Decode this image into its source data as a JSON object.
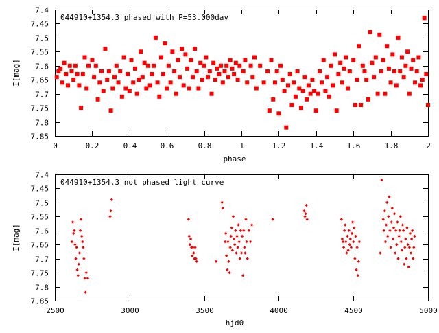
{
  "chart_data": [
    {
      "type": "scatter",
      "title": "044910+1354.3 phased with P=53.000day",
      "xlabel": "phase",
      "ylabel": "I[mag]",
      "xlim": [
        0,
        2
      ],
      "ylim": [
        7.85,
        7.4
      ],
      "y_inverted": true,
      "grid": false,
      "x_ticks": [
        "0",
        "0.2",
        "0.4",
        "0.6",
        "0.8",
        "1",
        "1.2",
        "1.4",
        "1.6",
        "1.8",
        "2"
      ],
      "y_ticks": [
        "7.4",
        "7.45",
        "7.5",
        "7.55",
        "7.6",
        "7.65",
        "7.7",
        "7.75",
        "7.8",
        "7.85"
      ],
      "marker_color": "#ff0000",
      "marker": "filled-square",
      "points": [
        [
          0.01,
          7.64
        ],
        [
          0.02,
          7.62
        ],
        [
          0.03,
          7.61
        ],
        [
          0.04,
          7.66
        ],
        [
          0.05,
          7.59
        ],
        [
          0.06,
          7.63
        ],
        [
          0.07,
          7.67
        ],
        [
          0.08,
          7.6
        ],
        [
          0.09,
          7.62
        ],
        [
          0.1,
          7.65
        ],
        [
          0.11,
          7.6
        ],
        [
          0.12,
          7.63
        ],
        [
          0.13,
          7.67
        ],
        [
          0.14,
          7.75
        ],
        [
          0.15,
          7.63
        ],
        [
          0.16,
          7.57
        ],
        [
          0.17,
          7.68
        ],
        [
          0.18,
          7.6
        ],
        [
          0.2,
          7.58
        ],
        [
          0.21,
          7.64
        ],
        [
          0.22,
          7.6
        ],
        [
          0.23,
          7.72
        ],
        [
          0.24,
          7.66
        ],
        [
          0.25,
          7.62
        ],
        [
          0.26,
          7.69
        ],
        [
          0.27,
          7.54
        ],
        [
          0.28,
          7.65
        ],
        [
          0.29,
          7.62
        ],
        [
          0.3,
          7.76
        ],
        [
          0.31,
          7.68
        ],
        [
          0.32,
          7.64
        ],
        [
          0.33,
          7.6
        ],
        [
          0.34,
          7.66
        ],
        [
          0.35,
          7.62
        ],
        [
          0.36,
          7.71
        ],
        [
          0.37,
          7.57
        ],
        [
          0.38,
          7.68
        ],
        [
          0.39,
          7.63
        ],
        [
          0.4,
          7.69
        ],
        [
          0.41,
          7.58
        ],
        [
          0.42,
          7.66
        ],
        [
          0.43,
          7.61
        ],
        [
          0.44,
          7.7
        ],
        [
          0.45,
          7.65
        ],
        [
          0.46,
          7.55
        ],
        [
          0.47,
          7.64
        ],
        [
          0.48,
          7.59
        ],
        [
          0.49,
          7.68
        ],
        [
          0.5,
          7.6
        ],
        [
          0.51,
          7.67
        ],
        [
          0.52,
          7.63
        ],
        [
          0.53,
          7.6
        ],
        [
          0.54,
          7.5
        ],
        [
          0.55,
          7.66
        ],
        [
          0.56,
          7.71
        ],
        [
          0.57,
          7.57
        ],
        [
          0.58,
          7.63
        ],
        [
          0.59,
          7.52
        ],
        [
          0.6,
          7.68
        ],
        [
          0.61,
          7.6
        ],
        [
          0.62,
          7.66
        ],
        [
          0.63,
          7.55
        ],
        [
          0.64,
          7.62
        ],
        [
          0.65,
          7.7
        ],
        [
          0.66,
          7.58
        ],
        [
          0.67,
          7.64
        ],
        [
          0.68,
          7.54
        ],
        [
          0.69,
          7.67
        ],
        [
          0.7,
          7.56
        ],
        [
          0.71,
          7.61
        ],
        [
          0.72,
          7.68
        ],
        [
          0.73,
          7.58
        ],
        [
          0.74,
          7.64
        ],
        [
          0.75,
          7.54
        ],
        [
          0.76,
          7.62
        ],
        [
          0.77,
          7.68
        ],
        [
          0.78,
          7.59
        ],
        [
          0.79,
          7.65
        ],
        [
          0.8,
          7.6
        ],
        [
          0.81,
          7.57
        ],
        [
          0.82,
          7.64
        ],
        [
          0.83,
          7.62
        ],
        [
          0.84,
          7.7
        ],
        [
          0.85,
          7.59
        ],
        [
          0.86,
          7.65
        ],
        [
          0.87,
          7.61
        ],
        [
          0.88,
          7.63
        ],
        [
          0.89,
          7.6
        ],
        [
          0.9,
          7.66
        ],
        [
          0.91,
          7.62
        ],
        [
          0.92,
          7.6
        ],
        [
          0.93,
          7.64
        ],
        [
          0.94,
          7.58
        ],
        [
          0.95,
          7.61
        ],
        [
          0.96,
          7.63
        ],
        [
          0.97,
          7.59
        ],
        [
          0.98,
          7.65
        ],
        [
          0.99,
          7.6
        ],
        [
          1.01,
          7.62
        ],
        [
          1.02,
          7.58
        ],
        [
          1.03,
          7.66
        ],
        [
          1.05,
          7.6
        ],
        [
          1.06,
          7.64
        ],
        [
          1.07,
          7.57
        ],
        [
          1.08,
          7.68
        ],
        [
          1.1,
          7.6
        ],
        [
          1.12,
          7.66
        ],
        [
          1.14,
          7.62
        ],
        [
          1.15,
          7.76
        ],
        [
          1.16,
          7.58
        ],
        [
          1.17,
          7.72
        ],
        [
          1.18,
          7.66
        ],
        [
          1.19,
          7.62
        ],
        [
          1.2,
          7.77
        ],
        [
          1.21,
          7.6
        ],
        [
          1.22,
          7.65
        ],
        [
          1.23,
          7.69
        ],
        [
          1.24,
          7.82
        ],
        [
          1.25,
          7.67
        ],
        [
          1.26,
          7.63
        ],
        [
          1.27,
          7.74
        ],
        [
          1.28,
          7.66
        ],
        [
          1.29,
          7.71
        ],
        [
          1.3,
          7.62
        ],
        [
          1.31,
          7.68
        ],
        [
          1.32,
          7.75
        ],
        [
          1.33,
          7.69
        ],
        [
          1.34,
          7.64
        ],
        [
          1.35,
          7.72
        ],
        [
          1.36,
          7.67
        ],
        [
          1.37,
          7.7
        ],
        [
          1.38,
          7.65
        ],
        [
          1.39,
          7.69
        ],
        [
          1.4,
          7.76
        ],
        [
          1.41,
          7.7
        ],
        [
          1.42,
          7.62
        ],
        [
          1.43,
          7.66
        ],
        [
          1.44,
          7.58
        ],
        [
          1.45,
          7.69
        ],
        [
          1.46,
          7.64
        ],
        [
          1.47,
          7.71
        ],
        [
          1.48,
          7.6
        ],
        [
          1.49,
          7.67
        ],
        [
          1.5,
          7.56
        ],
        [
          1.51,
          7.76
        ],
        [
          1.52,
          7.63
        ],
        [
          1.53,
          7.59
        ],
        [
          1.54,
          7.66
        ],
        [
          1.55,
          7.61
        ],
        [
          1.56,
          7.57
        ],
        [
          1.57,
          7.68
        ],
        [
          1.58,
          7.62
        ],
        [
          1.6,
          7.58
        ],
        [
          1.61,
          7.74
        ],
        [
          1.62,
          7.65
        ],
        [
          1.63,
          7.53
        ],
        [
          1.64,
          7.74
        ],
        [
          1.65,
          7.6
        ],
        [
          1.66,
          7.62
        ],
        [
          1.67,
          7.65
        ],
        [
          1.68,
          7.72
        ],
        [
          1.69,
          7.48
        ],
        [
          1.7,
          7.59
        ],
        [
          1.71,
          7.64
        ],
        [
          1.72,
          7.57
        ],
        [
          1.73,
          7.7
        ],
        [
          1.74,
          7.49
        ],
        [
          1.75,
          7.62
        ],
        [
          1.76,
          7.58
        ],
        [
          1.77,
          7.7
        ],
        [
          1.78,
          7.53
        ],
        [
          1.79,
          7.61
        ],
        [
          1.8,
          7.66
        ],
        [
          1.81,
          7.56
        ],
        [
          1.82,
          7.62
        ],
        [
          1.83,
          7.67
        ],
        [
          1.84,
          7.5
        ],
        [
          1.85,
          7.62
        ],
        [
          1.86,
          7.57
        ],
        [
          1.87,
          7.64
        ],
        [
          1.88,
          7.6
        ],
        [
          1.89,
          7.55
        ],
        [
          1.9,
          7.7
        ],
        [
          1.91,
          7.61
        ],
        [
          1.92,
          7.58
        ],
        [
          1.93,
          7.66
        ],
        [
          1.94,
          7.62
        ],
        [
          1.95,
          7.57
        ],
        [
          1.96,
          7.67
        ],
        [
          1.97,
          7.65
        ],
        [
          1.98,
          7.43
        ],
        [
          1.99,
          7.63
        ],
        [
          2.0,
          7.74
        ]
      ]
    },
    {
      "type": "scatter",
      "title": "044910+1354.3 not phased light curve",
      "xlabel": "hjd0",
      "ylabel": "I[mag]",
      "xlim": [
        2500,
        5000
      ],
      "ylim": [
        7.85,
        7.4
      ],
      "y_inverted": true,
      "grid": false,
      "x_ticks": [
        "2500",
        "3000",
        "3500",
        "4000",
        "4500",
        "5000"
      ],
      "y_ticks": [
        "7.4",
        "7.45",
        "7.5",
        "7.55",
        "7.6",
        "7.65",
        "7.7",
        "7.75",
        "7.8",
        "7.85"
      ],
      "marker_color": "#ff0000",
      "marker": "small-diamond",
      "points": [
        [
          2615,
          7.64
        ],
        [
          2620,
          7.57
        ],
        [
          2625,
          7.61
        ],
        [
          2630,
          7.6
        ],
        [
          2635,
          7.65
        ],
        [
          2640,
          7.7
        ],
        [
          2645,
          7.66
        ],
        [
          2650,
          7.74
        ],
        [
          2655,
          7.76
        ],
        [
          2660,
          7.72
        ],
        [
          2665,
          7.68
        ],
        [
          2670,
          7.6
        ],
        [
          2675,
          7.56
        ],
        [
          2680,
          7.62
        ],
        [
          2685,
          7.64
        ],
        [
          2690,
          7.66
        ],
        [
          2695,
          7.7
        ],
        [
          2700,
          7.77
        ],
        [
          2705,
          7.82
        ],
        [
          2710,
          7.75
        ],
        [
          2720,
          7.77
        ],
        [
          2870,
          7.55
        ],
        [
          2875,
          7.53
        ],
        [
          2880,
          7.49
        ],
        [
          3395,
          7.56
        ],
        [
          3400,
          7.62
        ],
        [
          3405,
          7.65
        ],
        [
          3410,
          7.63
        ],
        [
          3415,
          7.66
        ],
        [
          3420,
          7.69
        ],
        [
          3425,
          7.66
        ],
        [
          3430,
          7.68
        ],
        [
          3435,
          7.7
        ],
        [
          3440,
          7.66
        ],
        [
          3445,
          7.7
        ],
        [
          3450,
          7.71
        ],
        [
          3580,
          7.71
        ],
        [
          3620,
          7.5
        ],
        [
          3625,
          7.52
        ],
        [
          3640,
          7.64
        ],
        [
          3645,
          7.61
        ],
        [
          3650,
          7.69
        ],
        [
          3655,
          7.74
        ],
        [
          3660,
          7.64
        ],
        [
          3665,
          7.71
        ],
        [
          3670,
          7.75
        ],
        [
          3675,
          7.66
        ],
        [
          3680,
          7.62
        ],
        [
          3685,
          7.59
        ],
        [
          3690,
          7.67
        ],
        [
          3695,
          7.55
        ],
        [
          3700,
          7.63
        ],
        [
          3705,
          7.65
        ],
        [
          3710,
          7.6
        ],
        [
          3715,
          7.68
        ],
        [
          3720,
          7.62
        ],
        [
          3725,
          7.66
        ],
        [
          3730,
          7.58
        ],
        [
          3735,
          7.64
        ],
        [
          3740,
          7.7
        ],
        [
          3745,
          7.6
        ],
        [
          3750,
          7.68
        ],
        [
          3755,
          7.62
        ],
        [
          3760,
          7.76
        ],
        [
          3765,
          7.6
        ],
        [
          3770,
          7.66
        ],
        [
          3775,
          7.68
        ],
        [
          3780,
          7.56
        ],
        [
          3785,
          7.64
        ],
        [
          3790,
          7.7
        ],
        [
          3800,
          7.6
        ],
        [
          3810,
          7.64
        ],
        [
          3820,
          7.58
        ],
        [
          3960,
          7.56
        ],
        [
          4170,
          7.53
        ],
        [
          4175,
          7.55
        ],
        [
          4180,
          7.54
        ],
        [
          4185,
          7.51
        ],
        [
          4190,
          7.56
        ],
        [
          4420,
          7.56
        ],
        [
          4425,
          7.63
        ],
        [
          4430,
          7.64
        ],
        [
          4435,
          7.66
        ],
        [
          4440,
          7.6
        ],
        [
          4445,
          7.58
        ],
        [
          4450,
          7.64
        ],
        [
          4455,
          7.68
        ],
        [
          4460,
          7.62
        ],
        [
          4465,
          7.67
        ],
        [
          4470,
          7.6
        ],
        [
          4475,
          7.65
        ],
        [
          4480,
          7.63
        ],
        [
          4485,
          7.66
        ],
        [
          4490,
          7.61
        ],
        [
          4495,
          7.57
        ],
        [
          4500,
          7.64
        ],
        [
          4505,
          7.59
        ],
        [
          4510,
          7.7
        ],
        [
          4515,
          7.62
        ],
        [
          4520,
          7.74
        ],
        [
          4525,
          7.66
        ],
        [
          4530,
          7.76
        ],
        [
          4535,
          7.71
        ],
        [
          4540,
          7.64
        ],
        [
          4680,
          7.68
        ],
        [
          4690,
          7.42
        ],
        [
          4700,
          7.56
        ],
        [
          4705,
          7.6
        ],
        [
          4710,
          7.53
        ],
        [
          4715,
          7.64
        ],
        [
          4720,
          7.58
        ],
        [
          4725,
          7.5
        ],
        [
          4730,
          7.62
        ],
        [
          4735,
          7.55
        ],
        [
          4740,
          7.48
        ],
        [
          4745,
          7.6
        ],
        [
          4750,
          7.66
        ],
        [
          4755,
          7.57
        ],
        [
          4760,
          7.52
        ],
        [
          4765,
          7.63
        ],
        [
          4770,
          7.59
        ],
        [
          4775,
          7.54
        ],
        [
          4780,
          7.68
        ],
        [
          4785,
          7.6
        ],
        [
          4790,
          7.65
        ],
        [
          4795,
          7.57
        ],
        [
          4800,
          7.7
        ],
        [
          4805,
          7.62
        ],
        [
          4810,
          7.6
        ],
        [
          4815,
          7.55
        ],
        [
          4820,
          7.64
        ],
        [
          4825,
          7.67
        ],
        [
          4830,
          7.58
        ],
        [
          4835,
          7.6
        ],
        [
          4840,
          7.72
        ],
        [
          4845,
          7.66
        ],
        [
          4850,
          7.63
        ],
        [
          4855,
          7.7
        ],
        [
          4860,
          7.59
        ],
        [
          4865,
          7.65
        ],
        [
          4870,
          7.73
        ],
        [
          4875,
          7.66
        ],
        [
          4880,
          7.61
        ],
        [
          4885,
          7.68
        ],
        [
          4890,
          7.63
        ],
        [
          4895,
          7.6
        ],
        [
          4900,
          7.7
        ],
        [
          4905,
          7.66
        ],
        [
          4910,
          7.62
        ]
      ]
    }
  ]
}
